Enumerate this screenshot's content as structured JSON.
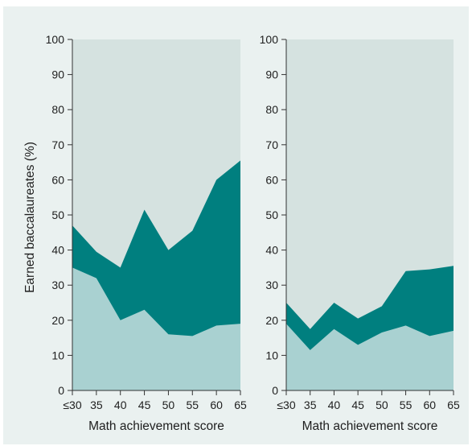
{
  "colors": {
    "frame_bg": "#eaf1f0",
    "upper_area": "#d5e2e0",
    "middle_area": "#007f7f",
    "lower_area": "#a9d1d1",
    "axis": "#333333"
  },
  "ylabel": "Earned baccalaureates (%)",
  "chart_data": [
    {
      "type": "area",
      "x": [
        30,
        35,
        40,
        45,
        50,
        55,
        60,
        65
      ],
      "x_tick_labels": [
        "≤30",
        "35",
        "40",
        "45",
        "50",
        "55",
        "60",
        "65"
      ],
      "xlabel": "Math achievement score",
      "ylim": [
        0,
        100
      ],
      "y_ticks": [
        0,
        10,
        20,
        30,
        40,
        50,
        60,
        70,
        80,
        90,
        100
      ],
      "series": [
        {
          "values": [
            35,
            32,
            20,
            23,
            16,
            15.5,
            18.5,
            19
          ]
        },
        {
          "values": [
            47,
            39.5,
            35,
            51.5,
            40,
            45.5,
            60,
            65.5
          ]
        }
      ]
    },
    {
      "type": "area",
      "x": [
        30,
        35,
        40,
        45,
        50,
        55,
        60,
        65
      ],
      "x_tick_labels": [
        "≤30",
        "35",
        "40",
        "45",
        "50",
        "55",
        "60",
        "65"
      ],
      "xlabel": "Math achievement score",
      "ylim": [
        0,
        100
      ],
      "y_ticks": [
        0,
        10,
        20,
        30,
        40,
        50,
        60,
        70,
        80,
        90,
        100
      ],
      "series": [
        {
          "values": [
            19,
            11.5,
            17.5,
            13,
            16.5,
            18.5,
            15.5,
            17
          ]
        },
        {
          "values": [
            25,
            17.5,
            25,
            20.5,
            24,
            34,
            34.5,
            35.5
          ]
        }
      ]
    }
  ]
}
